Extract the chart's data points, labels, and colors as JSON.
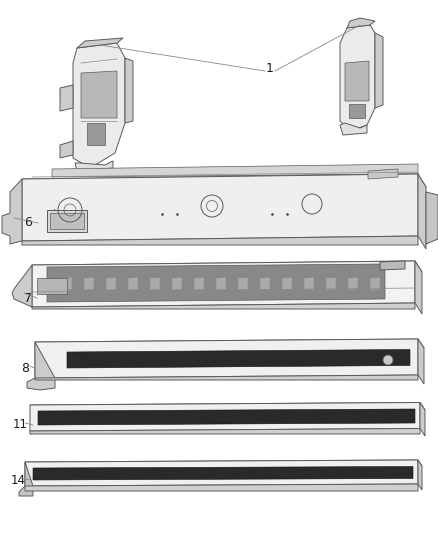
{
  "background_color": "#ffffff",
  "line_color": "#5a5a5a",
  "line_color2": "#888888",
  "figsize": [
    4.38,
    5.33
  ],
  "dpi": 100,
  "part1_label": "1",
  "part6_label": "6",
  "part7_label": "7",
  "part8_label": "8",
  "part11_label": "11",
  "part14_label": "14",
  "face_color_light": "#f0f0f0",
  "face_color_mid": "#e0e0e0",
  "face_color_dark": "#cccccc",
  "face_color_side": "#d8d8d8",
  "rubber_color": "#2a2a2a"
}
